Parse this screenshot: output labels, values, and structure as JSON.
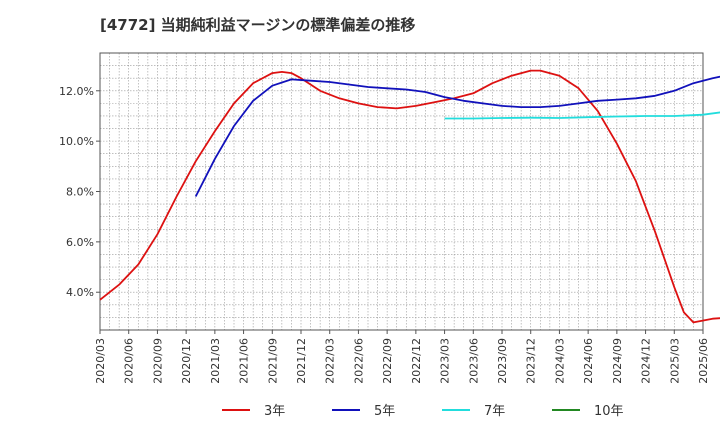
{
  "chart_data": {
    "type": "line",
    "title": "[4772]  当期純利益マージンの標準偏差の推移",
    "xlabel": "",
    "ylabel": "",
    "ylim": [
      2.5,
      13.5
    ],
    "y_ticks": [
      4.0,
      6.0,
      8.0,
      10.0,
      12.0
    ],
    "y_tick_labels": [
      "4.0%",
      "6.0%",
      "8.0%",
      "10.0%",
      "12.0%"
    ],
    "x_range": [
      "2020-03",
      "2025-06"
    ],
    "x_ticks": [
      "2020/03",
      "2020/06",
      "2020/09",
      "2020/12",
      "2021/03",
      "2021/06",
      "2021/09",
      "2021/12",
      "2022/03",
      "2022/06",
      "2022/09",
      "2022/12",
      "2023/03",
      "2023/06",
      "2023/09",
      "2023/12",
      "2024/03",
      "2024/06",
      "2024/09",
      "2024/12",
      "2025/03",
      "2025/06"
    ],
    "grid": true,
    "legend_position": "bottom",
    "series": [
      {
        "name": "3年",
        "color": "#dd1111",
        "points": [
          [
            "2020-03",
            3.7
          ],
          [
            "2020-05",
            4.3
          ],
          [
            "2020-07",
            5.1
          ],
          [
            "2020-09",
            6.3
          ],
          [
            "2020-11",
            7.8
          ],
          [
            "2021-01",
            9.2
          ],
          [
            "2021-03",
            10.4
          ],
          [
            "2021-05",
            11.5
          ],
          [
            "2021-07",
            12.3
          ],
          [
            "2021-09",
            12.7
          ],
          [
            "2021-10",
            12.75
          ],
          [
            "2021-11",
            12.7
          ],
          [
            "2021-12",
            12.5
          ],
          [
            "2022-02",
            12.0
          ],
          [
            "2022-04",
            11.7
          ],
          [
            "2022-06",
            11.5
          ],
          [
            "2022-08",
            11.35
          ],
          [
            "2022-10",
            11.3
          ],
          [
            "2022-12",
            11.4
          ],
          [
            "2023-02",
            11.55
          ],
          [
            "2023-04",
            11.7
          ],
          [
            "2023-06",
            11.9
          ],
          [
            "2023-08",
            12.3
          ],
          [
            "2023-10",
            12.6
          ],
          [
            "2023-12",
            12.8
          ],
          [
            "2024-01",
            12.8
          ],
          [
            "2024-03",
            12.6
          ],
          [
            "2024-05",
            12.1
          ],
          [
            "2024-07",
            11.2
          ],
          [
            "2024-09",
            9.9
          ],
          [
            "2024-11",
            8.4
          ],
          [
            "2025-01",
            6.4
          ],
          [
            "2025-03",
            4.2
          ],
          [
            "2025-04",
            3.2
          ],
          [
            "2025-05",
            2.8
          ],
          [
            "2025-07",
            2.95
          ],
          [
            "2025-09",
            3.0
          ],
          [
            "2025-10",
            3.05
          ]
        ]
      },
      {
        "name": "5年",
        "color": "#1111bb",
        "points": [
          [
            "2021-01",
            7.8
          ],
          [
            "2021-03",
            9.3
          ],
          [
            "2021-05",
            10.6
          ],
          [
            "2021-07",
            11.6
          ],
          [
            "2021-09",
            12.2
          ],
          [
            "2021-11",
            12.45
          ],
          [
            "2022-01",
            12.4
          ],
          [
            "2022-03",
            12.35
          ],
          [
            "2022-05",
            12.25
          ],
          [
            "2022-07",
            12.15
          ],
          [
            "2022-09",
            12.1
          ],
          [
            "2022-11",
            12.05
          ],
          [
            "2023-01",
            11.95
          ],
          [
            "2023-03",
            11.75
          ],
          [
            "2023-05",
            11.6
          ],
          [
            "2023-07",
            11.5
          ],
          [
            "2023-09",
            11.4
          ],
          [
            "2023-11",
            11.35
          ],
          [
            "2024-01",
            11.35
          ],
          [
            "2024-03",
            11.4
          ],
          [
            "2024-05",
            11.5
          ],
          [
            "2024-07",
            11.6
          ],
          [
            "2024-09",
            11.65
          ],
          [
            "2024-11",
            11.7
          ],
          [
            "2025-01",
            11.8
          ],
          [
            "2025-03",
            12.0
          ],
          [
            "2025-05",
            12.3
          ],
          [
            "2025-07",
            12.5
          ],
          [
            "2025-09",
            12.65
          ]
        ]
      },
      {
        "name": "7年",
        "color": "#22dddd",
        "points": [
          [
            "2023-03",
            10.9
          ],
          [
            "2023-06",
            10.9
          ],
          [
            "2023-09",
            10.92
          ],
          [
            "2023-12",
            10.93
          ],
          [
            "2024-03",
            10.92
          ],
          [
            "2024-06",
            10.95
          ],
          [
            "2024-09",
            10.98
          ],
          [
            "2024-12",
            11.0
          ],
          [
            "2025-03",
            11.0
          ],
          [
            "2025-06",
            11.05
          ],
          [
            "2025-09",
            11.2
          ],
          [
            "2025-10",
            11.25
          ]
        ]
      },
      {
        "name": "10年",
        "color": "#228822",
        "points": []
      }
    ]
  }
}
